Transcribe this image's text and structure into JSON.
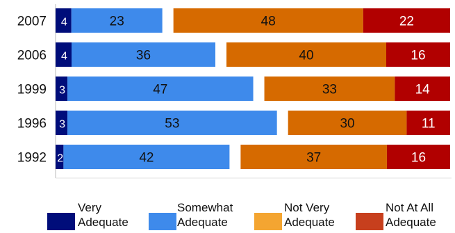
{
  "chart_data": {
    "type": "bar",
    "orientation": "horizontal",
    "stacked": true,
    "categories": [
      "2007",
      "2006",
      "1999",
      "1996",
      "1992"
    ],
    "series": [
      {
        "name": "Very Adequate",
        "legend_lines": [
          "Very",
          "Adequate"
        ],
        "color": "#000d7a",
        "values": [
          4,
          4,
          3,
          3,
          2
        ]
      },
      {
        "name": "Somewhat Adequate",
        "legend_lines": [
          "Somewhat",
          "Adequate"
        ],
        "color": "#3e8aeb",
        "values": [
          23,
          36,
          47,
          53,
          42
        ]
      },
      {
        "name": "Not Very Adequate",
        "legend_lines": [
          "Not Very",
          "Adequate"
        ],
        "legend_color": "#f4a531",
        "color": "#d66a00",
        "values": [
          48,
          40,
          33,
          30,
          37
        ]
      },
      {
        "name": "Not At All Adequate",
        "legend_lines": [
          "Not At All",
          "Adequate"
        ],
        "legend_color": "#c73f1d",
        "color": "#b10000",
        "values": [
          22,
          16,
          14,
          11,
          16
        ]
      }
    ],
    "grid": false,
    "legend_position": "bottom"
  }
}
